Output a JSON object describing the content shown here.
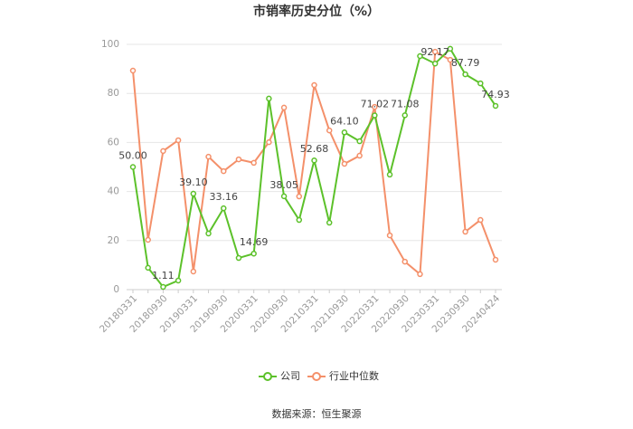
{
  "chart_data": {
    "type": "line",
    "title": "市销率历史分位（%）",
    "source": "数据来源：恒生聚源",
    "categories": [
      "20180331",
      null,
      "20180930",
      null,
      "20190331",
      null,
      "20190930",
      null,
      "20200331",
      null,
      "20200930",
      null,
      "20210331",
      null,
      "20210930",
      null,
      "20220331",
      null,
      "20220930",
      null,
      "20230331",
      null,
      "20230930",
      null,
      "20240424"
    ],
    "series": [
      {
        "name": "公司",
        "color": "#5cc12a",
        "values": [
          50,
          8.9,
          1.11,
          3.7,
          39.1,
          22.9,
          33.16,
          12.9,
          14.69,
          77.9,
          38.05,
          28.4,
          52.68,
          27.3,
          64.1,
          60.5,
          71.02,
          46.9,
          71.08,
          95.2,
          92.17,
          98.2,
          87.79,
          84.1,
          74.93
        ],
        "value_labels": [
          "50.00",
          null,
          "1.11",
          null,
          "39.10",
          null,
          "33.16",
          null,
          "14.69",
          null,
          "38.05",
          null,
          "52.68",
          null,
          "64.10",
          null,
          "71.02",
          null,
          "71.08",
          null,
          "92.17",
          null,
          "87.79",
          null,
          "74.93"
        ]
      },
      {
        "name": "行业中位数",
        "color": "#f4906a",
        "values": [
          89.3,
          20.3,
          56.5,
          60.9,
          7.4,
          54.2,
          48.3,
          53.1,
          51.7,
          60.1,
          74.2,
          38.0,
          83.4,
          64.9,
          51.3,
          54.6,
          74.5,
          22.1,
          11.4,
          6.3,
          97.0,
          93.7,
          23.6,
          28.4,
          12.2
        ]
      }
    ],
    "ylim": [
      0,
      100
    ],
    "yticks": [
      0,
      20,
      40,
      60,
      80,
      100
    ],
    "grid": true,
    "legend": "bottom"
  }
}
